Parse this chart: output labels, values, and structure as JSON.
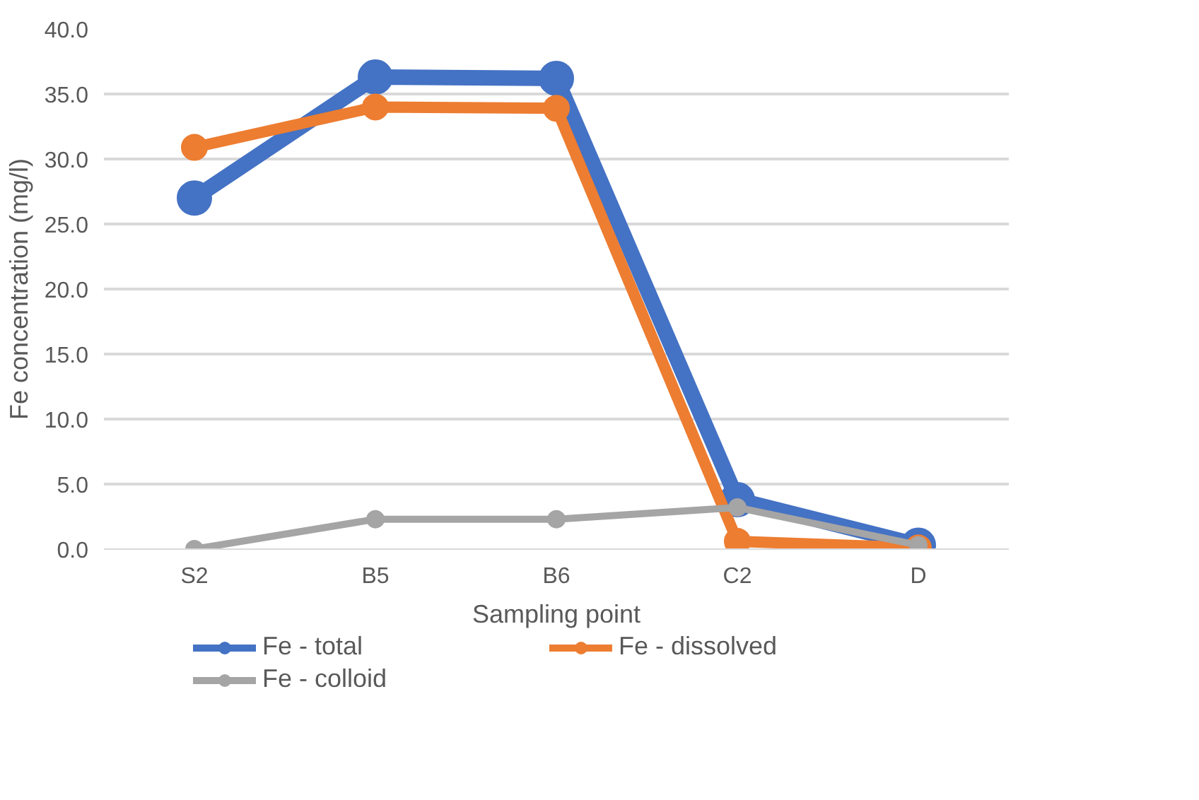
{
  "chart_data": {
    "type": "line",
    "xlabel": "Sampling point",
    "ylabel": "Fe concentration (mg/l)",
    "categories": [
      "S2",
      "B5",
      "B6",
      "C2",
      "D"
    ],
    "series": [
      {
        "name": "Fe - total",
        "color": "#4472c4",
        "values": [
          27.0,
          36.3,
          36.2,
          3.8,
          0.3
        ]
      },
      {
        "name": "Fe - dissolved",
        "color": "#ed7d31",
        "values": [
          30.9,
          34.0,
          33.9,
          0.6,
          0.1
        ]
      },
      {
        "name": "Fe - colloid",
        "color": "#a5a5a5",
        "values": [
          0.0,
          2.3,
          2.3,
          3.2,
          0.3
        ]
      }
    ],
    "ylim": [
      0,
      40
    ],
    "yticks": [
      {
        "value": 0,
        "label": "0.0"
      },
      {
        "value": 5,
        "label": "5.0"
      },
      {
        "value": 10,
        "label": "10.0"
      },
      {
        "value": 15,
        "label": "15.0"
      },
      {
        "value": 20,
        "label": "20.0"
      },
      {
        "value": 25,
        "label": "25.0"
      },
      {
        "value": 30,
        "label": "30.0"
      },
      {
        "value": 35,
        "label": "35.0"
      },
      {
        "value": 40,
        "label": "40.0"
      }
    ],
    "grid": "y",
    "legend": "bottom",
    "marker": "circle",
    "line_style": "solid"
  }
}
